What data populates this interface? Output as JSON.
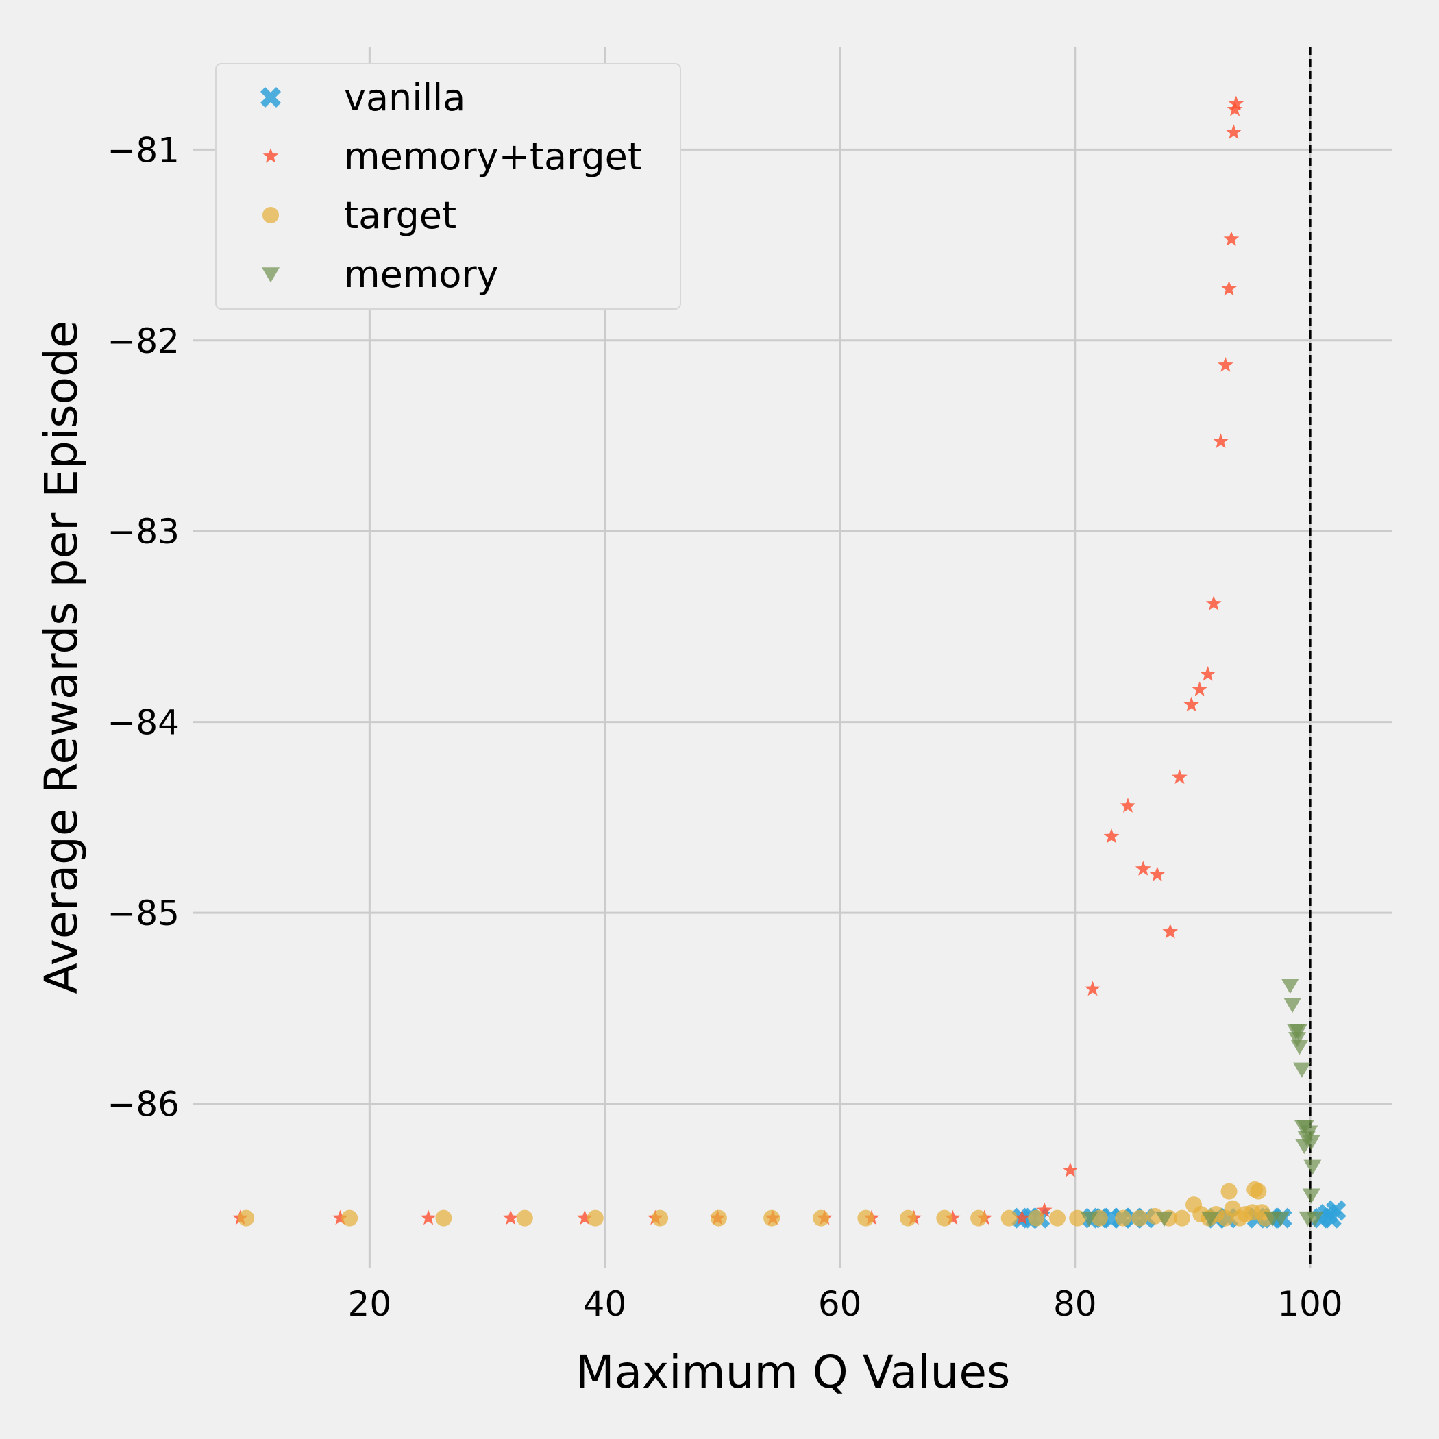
{
  "chart_data": {
    "type": "scatter",
    "xlabel": "Maximum Q Values",
    "ylabel": "Average Rewards per Episode",
    "xlim": [
      5,
      107
    ],
    "ylim": [
      -86.86,
      -80.46
    ],
    "xticks": [
      20,
      40,
      60,
      80,
      100
    ],
    "xtick_labels": [
      "20",
      "40",
      "60",
      "80",
      "100"
    ],
    "yticks": [
      -81,
      -82,
      -83,
      -84,
      -85,
      -86
    ],
    "ytick_labels": [
      "−81",
      "−82",
      "−83",
      "−84",
      "−85",
      "−86"
    ],
    "grid": true,
    "vline": {
      "x": 100,
      "style": "dashed",
      "color": "#000000"
    },
    "legend_position": "top-left",
    "series": [
      {
        "name": "vanilla",
        "marker": "X",
        "color": "#30a2da",
        "points": [
          [
            75.5,
            -86.6
          ],
          [
            76.2,
            -86.6
          ],
          [
            77,
            -86.6
          ],
          [
            81.5,
            -86.6
          ],
          [
            82.2,
            -86.6
          ],
          [
            83,
            -86.6
          ],
          [
            84,
            -86.6
          ],
          [
            85,
            -86.6
          ],
          [
            86,
            -86.6
          ],
          [
            92,
            -86.6
          ],
          [
            93,
            -86.6
          ],
          [
            95.5,
            -86.6
          ],
          [
            96.8,
            -86.6
          ],
          [
            97.6,
            -86.6
          ],
          [
            101,
            -86.6
          ],
          [
            101.5,
            -86.58
          ],
          [
            101.8,
            -86.6
          ],
          [
            102.2,
            -86.56
          ]
        ]
      },
      {
        "name": "memory+target",
        "marker": "*",
        "color": "#fc4f30",
        "points": [
          [
            9,
            -86.6
          ],
          [
            17.5,
            -86.6
          ],
          [
            25,
            -86.6
          ],
          [
            32,
            -86.6
          ],
          [
            38.3,
            -86.6
          ],
          [
            44.3,
            -86.6
          ],
          [
            49.6,
            -86.6
          ],
          [
            54.3,
            -86.6
          ],
          [
            58.7,
            -86.6
          ],
          [
            62.7,
            -86.6
          ],
          [
            66.3,
            -86.6
          ],
          [
            69.6,
            -86.6
          ],
          [
            72.3,
            -86.6
          ],
          [
            75.5,
            -86.6
          ],
          [
            77.4,
            -86.56
          ],
          [
            79.6,
            -86.35
          ],
          [
            81.5,
            -85.4
          ],
          [
            83.1,
            -84.6
          ],
          [
            84.5,
            -84.44
          ],
          [
            85.8,
            -84.77
          ],
          [
            87,
            -84.8
          ],
          [
            88.1,
            -85.1
          ],
          [
            88.9,
            -84.29
          ],
          [
            89.9,
            -83.91
          ],
          [
            90.6,
            -83.83
          ],
          [
            91.3,
            -83.75
          ],
          [
            91.8,
            -83.38
          ],
          [
            92.4,
            -82.53
          ],
          [
            92.8,
            -82.13
          ],
          [
            93.1,
            -81.73
          ],
          [
            93.3,
            -81.47
          ],
          [
            93.5,
            -80.91
          ],
          [
            93.6,
            -80.79
          ],
          [
            93.7,
            -80.76
          ]
        ]
      },
      {
        "name": "target",
        "marker": "o",
        "color": "#e5ae38",
        "points": [
          [
            9.5,
            -86.6
          ],
          [
            18.3,
            -86.6
          ],
          [
            26.3,
            -86.6
          ],
          [
            33.2,
            -86.6
          ],
          [
            39.2,
            -86.6
          ],
          [
            44.7,
            -86.6
          ],
          [
            49.7,
            -86.6
          ],
          [
            54.2,
            -86.6
          ],
          [
            58.4,
            -86.6
          ],
          [
            62.2,
            -86.6
          ],
          [
            65.8,
            -86.6
          ],
          [
            68.9,
            -86.6
          ],
          [
            71.8,
            -86.6
          ],
          [
            74.4,
            -86.6
          ],
          [
            76.7,
            -86.6
          ],
          [
            78.5,
            -86.6
          ],
          [
            80.2,
            -86.6
          ],
          [
            82.1,
            -86.6
          ],
          [
            84.1,
            -86.6
          ],
          [
            85.5,
            -86.6
          ],
          [
            86.8,
            -86.59
          ],
          [
            88,
            -86.6
          ],
          [
            89.1,
            -86.6
          ],
          [
            90.1,
            -86.53
          ],
          [
            90.7,
            -86.58
          ],
          [
            91.4,
            -86.6
          ],
          [
            92,
            -86.58
          ],
          [
            92.8,
            -86.6
          ],
          [
            93.1,
            -86.46
          ],
          [
            93.4,
            -86.55
          ],
          [
            94,
            -86.6
          ],
          [
            94.5,
            -86.58
          ],
          [
            95.1,
            -86.57
          ],
          [
            95.3,
            -86.45
          ],
          [
            95.6,
            -86.46
          ],
          [
            95.9,
            -86.57
          ],
          [
            96.2,
            -86.6
          ]
        ]
      },
      {
        "name": "memory",
        "marker": "v",
        "color": "#6d904f",
        "points": [
          [
            81.2,
            -86.6
          ],
          [
            87.6,
            -86.6
          ],
          [
            91.5,
            -86.6
          ],
          [
            96.8,
            -86.6
          ],
          [
            97.5,
            -86.6
          ],
          [
            98.3,
            -85.38
          ],
          [
            98.5,
            -85.48
          ],
          [
            98.8,
            -85.62
          ],
          [
            98.9,
            -85.66
          ],
          [
            99,
            -85.62
          ],
          [
            99.1,
            -85.7
          ],
          [
            99.3,
            -85.82
          ],
          [
            99.4,
            -86.12
          ],
          [
            99.5,
            -86.22
          ],
          [
            99.6,
            -86.12
          ],
          [
            99.7,
            -86.18
          ],
          [
            99.8,
            -86.6
          ],
          [
            99.9,
            -86.15
          ],
          [
            100.1,
            -86.2
          ],
          [
            100.2,
            -86.33
          ],
          [
            100.1,
            -86.48
          ],
          [
            100.4,
            -86.6
          ]
        ]
      }
    ]
  }
}
